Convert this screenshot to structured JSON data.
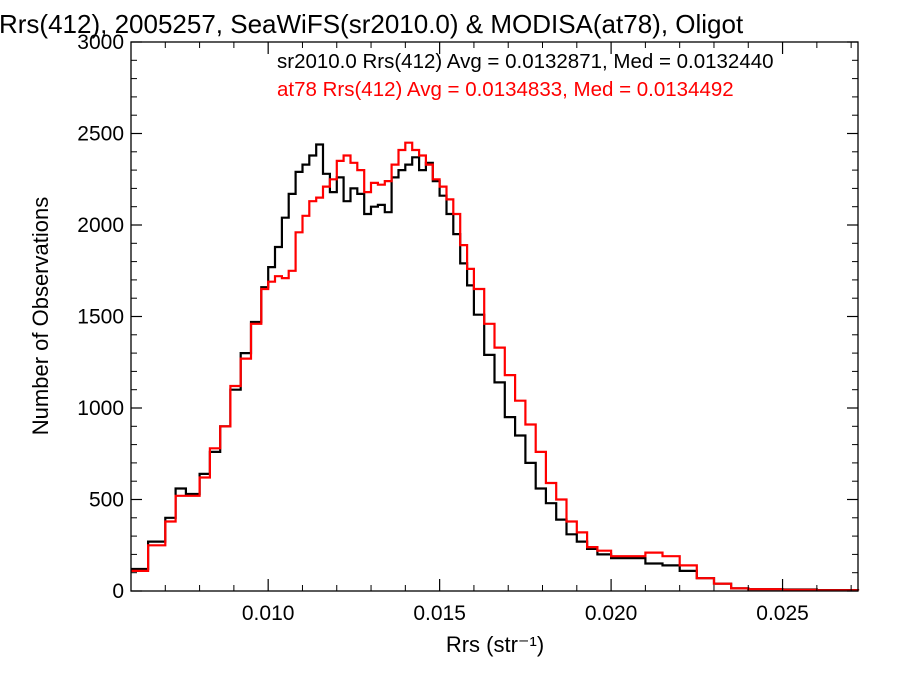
{
  "chart_data": {
    "type": "line",
    "title": "Rrs(412), 2005257, SeaWiFS(sr2010.0) & MODISA(at78), Oligot",
    "xlabel": "Rrs (str⁻¹)",
    "ylabel": "Number of Observations",
    "xlim": [
      0.006,
      0.0272
    ],
    "ylim": [
      0,
      3000
    ],
    "x_ticks": [
      0.01,
      0.015,
      0.02,
      0.025
    ],
    "x_tick_labels": [
      "0.010",
      "0.015",
      "0.020",
      "0.025"
    ],
    "y_ticks": [
      0,
      500,
      1000,
      1500,
      2000,
      2500,
      3000
    ],
    "y_tick_labels": [
      "0",
      "500",
      "1000",
      "1500",
      "2000",
      "2500",
      "3000"
    ],
    "grid": false,
    "legend_position": "top-right",
    "step_style": "histogram",
    "series": [
      {
        "name": "sr2010.0 Rrs(412) Avg = 0.0132871, Med = 0.0132440",
        "color": "#000000",
        "x": [
          0.006,
          0.0065,
          0.007,
          0.0073,
          0.0076,
          0.008,
          0.0083,
          0.0086,
          0.0089,
          0.0092,
          0.0095,
          0.0098,
          0.01,
          0.0102,
          0.0104,
          0.0106,
          0.0108,
          0.011,
          0.0112,
          0.0114,
          0.0116,
          0.0118,
          0.012,
          0.0122,
          0.0124,
          0.0126,
          0.0128,
          0.013,
          0.0132,
          0.0134,
          0.0136,
          0.0138,
          0.014,
          0.0142,
          0.0144,
          0.0146,
          0.0148,
          0.015,
          0.0152,
          0.0154,
          0.0156,
          0.0158,
          0.016,
          0.0163,
          0.0166,
          0.0169,
          0.0172,
          0.0175,
          0.0178,
          0.0181,
          0.0184,
          0.0187,
          0.019,
          0.0193,
          0.0196,
          0.02,
          0.0205,
          0.021,
          0.0215,
          0.022,
          0.0225,
          0.023,
          0.0235,
          0.024,
          0.025,
          0.026,
          0.0272
        ],
        "y": [
          120,
          270,
          400,
          560,
          530,
          640,
          760,
          900,
          1100,
          1300,
          1470,
          1660,
          1770,
          1880,
          2040,
          2170,
          2290,
          2330,
          2380,
          2440,
          2280,
          2180,
          2260,
          2130,
          2200,
          2170,
          2060,
          2100,
          2110,
          2070,
          2260,
          2300,
          2330,
          2370,
          2300,
          2340,
          2240,
          2160,
          2060,
          1950,
          1790,
          1670,
          1510,
          1290,
          1140,
          950,
          850,
          700,
          560,
          480,
          390,
          310,
          270,
          230,
          200,
          180,
          180,
          150,
          140,
          110,
          70,
          40,
          15,
          10,
          8,
          5,
          3
        ]
      },
      {
        "name": "at78 Rrs(412) Avg = 0.0134833, Med = 0.0134492",
        "color": "#ff0000",
        "x": [
          0.006,
          0.0065,
          0.007,
          0.0073,
          0.0076,
          0.008,
          0.0083,
          0.0086,
          0.0089,
          0.0092,
          0.0095,
          0.0098,
          0.01,
          0.0102,
          0.0104,
          0.0106,
          0.0108,
          0.011,
          0.0112,
          0.0114,
          0.0116,
          0.0118,
          0.012,
          0.0122,
          0.0124,
          0.0126,
          0.0128,
          0.013,
          0.0132,
          0.0134,
          0.0136,
          0.0138,
          0.014,
          0.0142,
          0.0144,
          0.0146,
          0.0148,
          0.015,
          0.0152,
          0.0154,
          0.0156,
          0.0158,
          0.016,
          0.0163,
          0.0166,
          0.0169,
          0.0172,
          0.0175,
          0.0178,
          0.0181,
          0.0184,
          0.0187,
          0.019,
          0.0193,
          0.0196,
          0.02,
          0.0205,
          0.021,
          0.0215,
          0.022,
          0.0225,
          0.023,
          0.0235,
          0.024,
          0.025,
          0.026,
          0.0272
        ],
        "y": [
          110,
          250,
          380,
          520,
          520,
          620,
          780,
          900,
          1120,
          1270,
          1460,
          1650,
          1690,
          1720,
          1710,
          1750,
          1960,
          2050,
          2130,
          2150,
          2210,
          2250,
          2350,
          2380,
          2340,
          2300,
          2180,
          2230,
          2220,
          2240,
          2330,
          2410,
          2450,
          2410,
          2380,
          2330,
          2250,
          2210,
          2140,
          2060,
          1890,
          1760,
          1650,
          1460,
          1330,
          1180,
          1040,
          910,
          760,
          590,
          500,
          380,
          320,
          240,
          220,
          190,
          190,
          210,
          190,
          140,
          70,
          40,
          15,
          10,
          6,
          4,
          2
        ]
      }
    ]
  }
}
